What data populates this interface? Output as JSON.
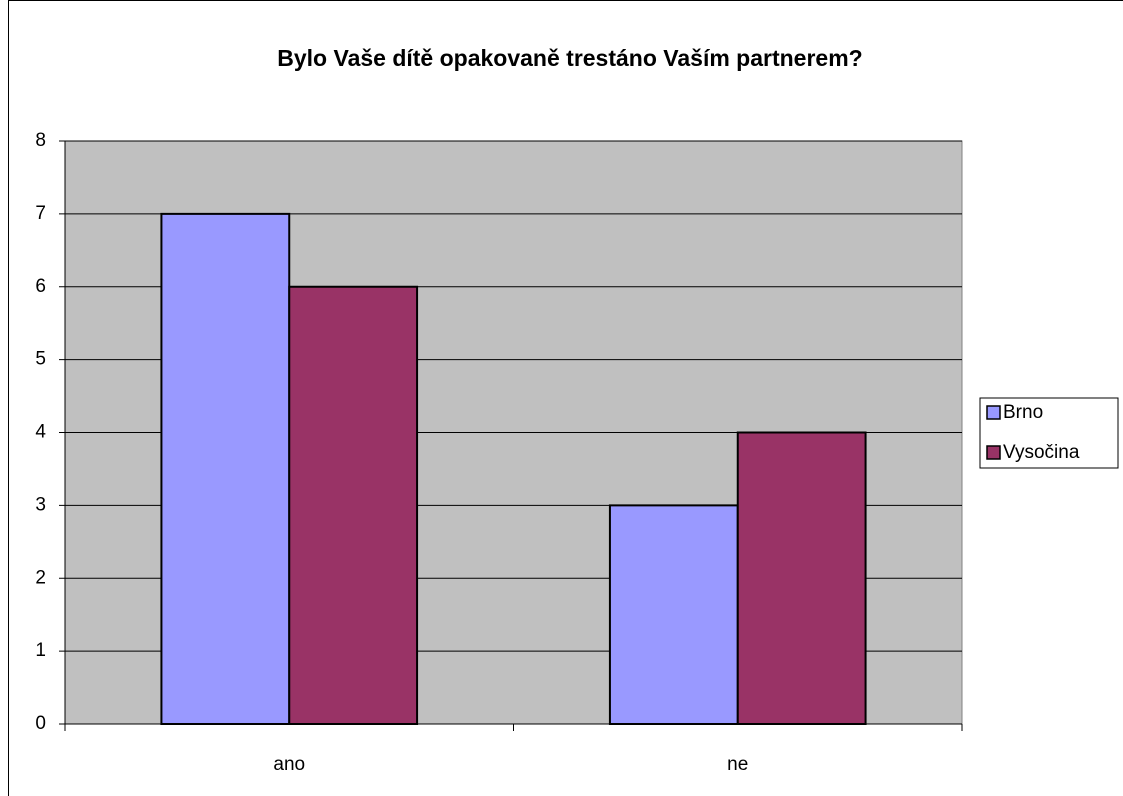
{
  "chart_data": {
    "type": "bar",
    "title": "Bylo Vaše dítě opakovaně trestáno Vaším partnerem?",
    "categories": [
      "ano",
      "ne"
    ],
    "series": [
      {
        "name": "Brno",
        "color": "#9999ff",
        "values": [
          7,
          3
        ]
      },
      {
        "name": "Vysočina",
        "color": "#993366",
        "values": [
          6,
          4
        ]
      }
    ],
    "ylim": [
      0,
      8
    ],
    "yticks": [
      0,
      1,
      2,
      3,
      4,
      5,
      6,
      7,
      8
    ],
    "grid": true,
    "legend": "right",
    "plot_background": "#c0c0c0"
  }
}
